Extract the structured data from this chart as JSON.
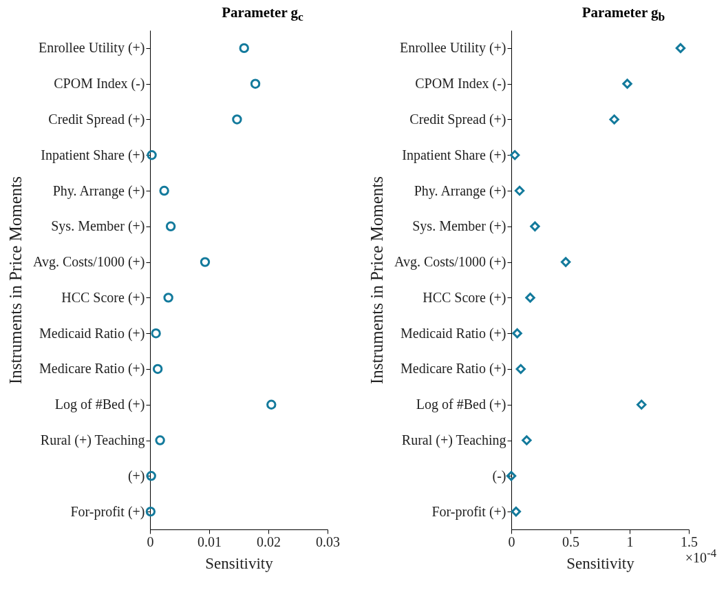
{
  "chart_data": [
    {
      "type": "scatter",
      "orientation": "horizontal",
      "title": "Parameter g$_{c}$",
      "xlabel": "Sensitivity",
      "ylabel": "Instruments in Price Moments",
      "marker": "circle",
      "categories": [
        "Enrollee Utility  (+)",
        "CPOM Index (-)",
        "Credit Spread (+)",
        "Inpatient Share (+)",
        "Phy. Arrange (+)",
        "Sys. Member (+)",
        "Avg. Costs/1000 (+)",
        "HCC Score (+)",
        "Medicaid Ratio (+)",
        "Medicare Ratio (+)",
        "Log of #Bed (+)",
        "Rural (+) Teaching",
        "(+)",
        "For-profit (+)"
      ],
      "series": [
        {
          "color": "#137a9c",
          "values": [
            0.0159,
            0.0178,
            0.0147,
            0.0003,
            0.0024,
            0.0035,
            0.0093,
            0.0031,
            0.001,
            0.0013,
            0.0205,
            0.0017,
            0.0002,
            0.0001
          ]
        }
      ],
      "xlim": [
        0,
        0.03
      ],
      "xticks": [
        0,
        0.01,
        0.02,
        0.03
      ]
    },
    {
      "type": "scatter",
      "orientation": "horizontal",
      "title": "Parameter g$_{b}$",
      "xlabel": "Sensitivity",
      "ylabel": "Instruments in Price Moments",
      "marker": "diamond",
      "annotations": [
        "×10$^{-4}$"
      ],
      "categories": [
        "Enrollee Utility (+)",
        "CPOM Index (-)",
        "Credit Spread (+)",
        "Inpatient Share (+)",
        "Phy. Arrange (+)",
        "Sys. Member (+)",
        "Avg. Costs/1000 (+)",
        "HCC Score (+)",
        "Medicaid Ratio (+)",
        "Medicare Ratio (+)",
        "Log of #Bed (+)",
        "Rural (+) Teaching",
        "(-)",
        "For-profit (+)"
      ],
      "series": [
        {
          "color": "#137a9c",
          "values": [
            1.43,
            0.98,
            0.87,
            0.03,
            0.07,
            0.2,
            0.46,
            0.16,
            0.05,
            0.08,
            1.1,
            0.13,
            0.0,
            0.04
          ]
        }
      ],
      "xlim": [
        0,
        1.5
      ],
      "xticks": [
        0,
        0.5,
        1,
        1.5
      ]
    }
  ]
}
